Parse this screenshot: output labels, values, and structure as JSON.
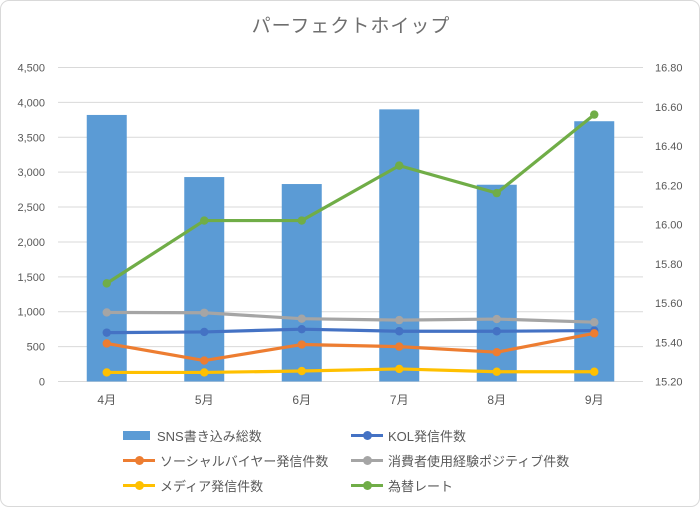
{
  "chart_data": {
    "type": "bar+line combo, dual axis",
    "title": "パーフェクトホイップ",
    "categories": [
      "4月",
      "5月",
      "6月",
      "7月",
      "8月",
      "9月"
    ],
    "series": [
      {
        "name": "SNS書き込み総数",
        "type": "bar",
        "axis": "left",
        "color": "#5B9BD5",
        "values": [
          3820,
          2930,
          2830,
          3900,
          2820,
          3730
        ]
      },
      {
        "name": "KOL発信件数",
        "type": "line",
        "axis": "left",
        "color": "#4472C4",
        "values": [
          700,
          710,
          750,
          720,
          720,
          730
        ]
      },
      {
        "name": "ソーシャルバイヤー発信件数",
        "type": "line",
        "axis": "left",
        "color": "#ED7D31",
        "values": [
          545,
          300,
          530,
          500,
          420,
          690
        ]
      },
      {
        "name": "消費者使用経験ポジティブ件数",
        "type": "line",
        "axis": "left",
        "color": "#A5A5A5",
        "values": [
          990,
          985,
          900,
          880,
          895,
          850
        ]
      },
      {
        "name": "メディア発信件数",
        "type": "line",
        "axis": "left",
        "color": "#FFC000",
        "values": [
          130,
          130,
          150,
          180,
          140,
          140
        ]
      },
      {
        "name": "為替レート",
        "type": "line",
        "axis": "right",
        "color": "#70AD47",
        "values": [
          15.7,
          16.02,
          16.02,
          16.3,
          16.16,
          16.56
        ]
      }
    ],
    "left_axis": {
      "min": 0,
      "max": 4500,
      "step": 500,
      "tick_labels": [
        "0",
        "500",
        "1,000",
        "1,500",
        "2,000",
        "2,500",
        "3,000",
        "3,500",
        "4,000",
        "4,500"
      ]
    },
    "right_axis": {
      "min": 15.2,
      "max": 16.8,
      "step": 0.2,
      "tick_labels": [
        "15.20",
        "15.40",
        "15.60",
        "15.80",
        "16.00",
        "16.20",
        "16.40",
        "16.60",
        "16.80"
      ]
    },
    "grid": {
      "horizontal": true,
      "color": "#D9D9D9"
    },
    "legend": {
      "position": "bottom",
      "columns": 2
    }
  },
  "colors": {
    "background": "#FFFFFF",
    "frame_border": "#D9D9D9",
    "gridline": "#D9D9D9",
    "axis_text": "#595959",
    "title_text": "#6E6E6E"
  }
}
